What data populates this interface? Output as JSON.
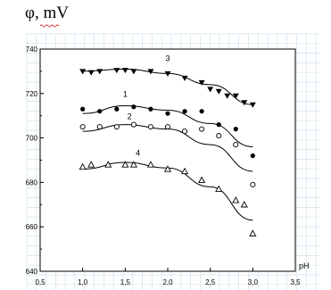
{
  "chart_data": {
    "type": "scatter",
    "ylabel": "φ, mV",
    "xlabel": "pH",
    "xlim": [
      0.5,
      3.5
    ],
    "ylim": [
      640,
      740
    ],
    "xticks": [
      0.5,
      1.0,
      1.5,
      2.0,
      2.5,
      3.0,
      3.5
    ],
    "yticks": [
      640,
      660,
      680,
      700,
      720,
      740
    ],
    "xtick_labels": [
      "0,5",
      "1,0",
      "1,5",
      "2,0",
      "2,5",
      "3,0",
      "3,5"
    ],
    "ytick_labels": [
      "640",
      "660",
      "680",
      "700",
      "720",
      "740"
    ],
    "grid": true,
    "series": [
      {
        "name": "3",
        "marker": "filled-triangle-down",
        "points": [
          [
            1.0,
            730
          ],
          [
            1.1,
            729.5
          ],
          [
            1.2,
            730
          ],
          [
            1.4,
            730.5
          ],
          [
            1.5,
            730.5
          ],
          [
            1.6,
            730
          ],
          [
            1.8,
            730
          ],
          [
            2.0,
            729
          ],
          [
            2.2,
            727
          ],
          [
            2.4,
            725
          ],
          [
            2.5,
            722
          ],
          [
            2.6,
            721
          ],
          [
            2.7,
            719
          ],
          [
            2.8,
            719
          ],
          [
            2.9,
            716
          ],
          [
            3.0,
            715
          ]
        ],
        "curve": [
          [
            1.0,
            730
          ],
          [
            1.5,
            731
          ],
          [
            2.0,
            729
          ],
          [
            2.5,
            724
          ],
          [
            3.0,
            715
          ]
        ]
      },
      {
        "name": "1",
        "marker": "filled-circle",
        "points": [
          [
            1.0,
            713
          ],
          [
            1.2,
            712
          ],
          [
            1.4,
            713
          ],
          [
            1.6,
            714
          ],
          [
            1.8,
            713
          ],
          [
            2.0,
            711
          ],
          [
            2.2,
            712
          ],
          [
            2.4,
            712
          ],
          [
            2.6,
            706
          ],
          [
            2.8,
            704
          ],
          [
            3.0,
            692
          ]
        ],
        "curve": [
          [
            1.0,
            711
          ],
          [
            1.5,
            714.5
          ],
          [
            2.0,
            712.5
          ],
          [
            2.5,
            706.5
          ],
          [
            3.0,
            696
          ]
        ]
      },
      {
        "name": "2",
        "marker": "open-circle",
        "points": [
          [
            1.0,
            705
          ],
          [
            1.2,
            705
          ],
          [
            1.4,
            705
          ],
          [
            1.6,
            706
          ],
          [
            1.8,
            705
          ],
          [
            2.0,
            705
          ],
          [
            2.2,
            703
          ],
          [
            2.4,
            704
          ],
          [
            2.6,
            701
          ],
          [
            2.8,
            697
          ],
          [
            3.0,
            679
          ]
        ],
        "curve": [
          [
            1.0,
            703
          ],
          [
            1.5,
            706
          ],
          [
            2.0,
            704
          ],
          [
            2.5,
            697
          ],
          [
            3.0,
            685
          ]
        ]
      },
      {
        "name": "4",
        "marker": "open-triangle-up",
        "points": [
          [
            1.0,
            687
          ],
          [
            1.1,
            688
          ],
          [
            1.3,
            688
          ],
          [
            1.5,
            688
          ],
          [
            1.6,
            688
          ],
          [
            1.8,
            688
          ],
          [
            2.0,
            686
          ],
          [
            2.2,
            685
          ],
          [
            2.4,
            681
          ],
          [
            2.6,
            677
          ],
          [
            2.8,
            672
          ],
          [
            2.9,
            670
          ],
          [
            3.0,
            657
          ]
        ],
        "curve": [
          [
            1.0,
            686
          ],
          [
            1.5,
            689
          ],
          [
            2.0,
            686.5
          ],
          [
            2.5,
            678
          ],
          [
            3.0,
            663
          ]
        ]
      }
    ]
  }
}
